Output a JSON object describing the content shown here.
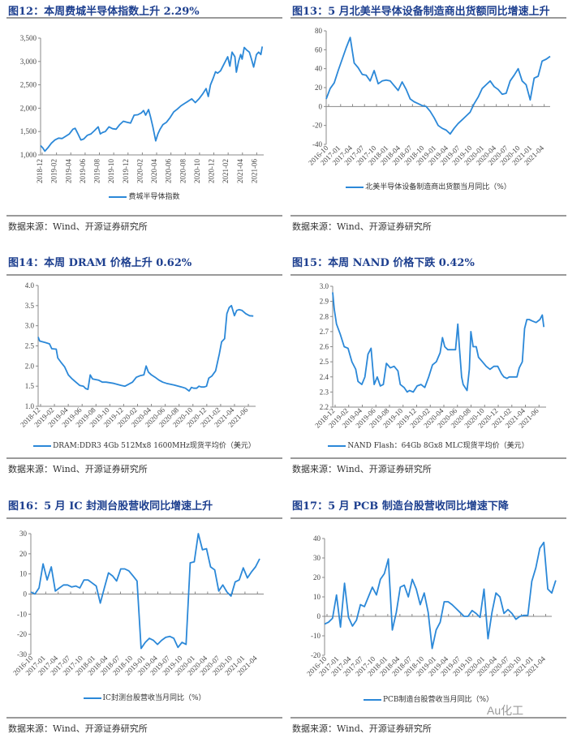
{
  "source_text": "数据来源：Wind、开源证券研究所",
  "watermark": "Au化工",
  "chart_data": [
    {
      "type": "line",
      "title": "图12：本周费城半导体指数上升 2.29%",
      "legend": "费城半导体指数",
      "x_unit": "months since 2018-12",
      "yticks": [
        "1,000",
        "1,500",
        "2,000",
        "2,500",
        "3,000",
        "3,500"
      ],
      "ylim": [
        1000,
        3500
      ],
      "xlim": [
        0,
        31
      ],
      "xticks": [
        "2018-12",
        "2019-02",
        "2019-04",
        "2019-06",
        "2019-08",
        "2019-10",
        "2019-12",
        "2020-02",
        "2020-04",
        "2020-06",
        "2020-08",
        "2020-10",
        "2020-12",
        "2021-02",
        "2021-04",
        "2021-06"
      ],
      "x": [
        0,
        0.3,
        0.6,
        1,
        1.5,
        2,
        2.5,
        3,
        3.5,
        4,
        4.5,
        4.8,
        5.2,
        5.6,
        6,
        6.5,
        7,
        7.5,
        8,
        8.3,
        8.6,
        9,
        9.5,
        10,
        10.5,
        11,
        11.5,
        12,
        12.5,
        13,
        13.5,
        14,
        14.3,
        14.6,
        15,
        15.3,
        15.6,
        16,
        16.3,
        16.6,
        17,
        17.5,
        18,
        18.5,
        19,
        19.5,
        20,
        20.5,
        21,
        21.5,
        22,
        22.5,
        23,
        23.3,
        23.6,
        24,
        24.3,
        24.6,
        25,
        25.5,
        26,
        26.3,
        26.6,
        27,
        27.2,
        27.5,
        27.8,
        28,
        28.3,
        28.6,
        29,
        29.3,
        29.6,
        30,
        30.3,
        30.6,
        30.8
      ],
      "values": [
        1200,
        1150,
        1080,
        1150,
        1250,
        1320,
        1360,
        1350,
        1400,
        1450,
        1550,
        1570,
        1450,
        1320,
        1340,
        1420,
        1450,
        1520,
        1600,
        1450,
        1480,
        1500,
        1600,
        1560,
        1550,
        1650,
        1720,
        1700,
        1680,
        1850,
        1860,
        1900,
        1950,
        1850,
        1970,
        1800,
        1600,
        1300,
        1450,
        1550,
        1650,
        1700,
        1800,
        1920,
        1980,
        2050,
        2100,
        2150,
        2200,
        2120,
        2200,
        2300,
        2420,
        2250,
        2500,
        2650,
        2780,
        2750,
        2800,
        2950,
        3100,
        2900,
        3200,
        3100,
        2770,
        3000,
        3150,
        3050,
        3300,
        3250,
        3200,
        3050,
        2880,
        3150,
        3200,
        3150,
        3320
      ]
    },
    {
      "type": "line",
      "title": "图13：5 月北美半导体设备制造商出货额同比增速上升",
      "legend": "北美半导体设备制造商出货额当月同比（%）",
      "x_unit": "months since 2016-10",
      "yticks": [
        "-40",
        "-20",
        "0",
        "20",
        "40",
        "60",
        "80"
      ],
      "ylim": [
        -40,
        80
      ],
      "xlim": [
        0,
        56
      ],
      "xticks": [
        "2016-10",
        "2017-01",
        "2017-04",
        "2017-07",
        "2017-10",
        "2018-01",
        "2018-04",
        "2018-07",
        "2018-10",
        "2019-01",
        "2019-04",
        "2019-07",
        "2019-10",
        "2020-01",
        "2020-04",
        "2020-07",
        "2020-10",
        "2021-01",
        "2021-04"
      ],
      "values": [
        8,
        19,
        25,
        38,
        50,
        62,
        73,
        46,
        41,
        34,
        33,
        27,
        38,
        24,
        27,
        28,
        27,
        22,
        17,
        26,
        18,
        8,
        5,
        3,
        1,
        0,
        -5,
        -12,
        -20,
        -23,
        -25,
        -29,
        -23,
        -18,
        -14,
        -10,
        -6,
        3,
        10,
        19,
        23,
        27,
        21,
        18,
        13,
        14,
        27,
        33,
        40,
        27,
        23,
        7,
        30,
        32,
        48,
        50,
        53
      ]
    },
    {
      "type": "line",
      "title": "图14：本周 DRAM 价格上升 0.62%",
      "legend": "DRAM:DDR3 4Gb 512Mx8 1600MHz现货平均价（美元）",
      "x_unit": "months since 2018-12",
      "yticks": [
        "1.0",
        "1.5",
        "2.0",
        "2.5",
        "3.0",
        "3.5",
        "4.0"
      ],
      "ylim": [
        1.0,
        4.0
      ],
      "xlim": [
        0,
        28.8
      ],
      "xticks": [
        "2018-12",
        "2019-02",
        "2019-04",
        "2019-06",
        "2019-08",
        "2019-10",
        "2019-12",
        "2020-02",
        "2020-04",
        "2020-06",
        "2020-08",
        "2020-10",
        "2020-12",
        "2021-02",
        "2021-04",
        "2021-06"
      ],
      "x": [
        0,
        0.2,
        1,
        1.5,
        1.8,
        2.4,
        2.6,
        3,
        3.5,
        4,
        4.5,
        5,
        5.5,
        6,
        6.3,
        6.6,
        6.9,
        7.2,
        8,
        8.5,
        9,
        10,
        11,
        11.5,
        12,
        12.5,
        13,
        13.5,
        14,
        14.3,
        14.6,
        15,
        15.5,
        16,
        16.5,
        17,
        18,
        19,
        19.5,
        20,
        20.3,
        20.6,
        21,
        21.3,
        21.6,
        22,
        22.3,
        22.6,
        23,
        23.5,
        24,
        24.3,
        24.7,
        25,
        25.3,
        25.6,
        26,
        26.3,
        26.6,
        27,
        27.5,
        28,
        28.5
      ],
      "values": [
        2.72,
        2.62,
        2.58,
        2.55,
        2.43,
        2.42,
        2.2,
        2.1,
        1.98,
        1.78,
        1.68,
        1.6,
        1.52,
        1.5,
        1.44,
        1.42,
        1.78,
        1.68,
        1.65,
        1.6,
        1.6,
        1.57,
        1.52,
        1.5,
        1.55,
        1.6,
        1.72,
        1.76,
        1.78,
        2.0,
        1.85,
        1.78,
        1.72,
        1.65,
        1.6,
        1.57,
        1.53,
        1.48,
        1.45,
        1.38,
        1.47,
        1.45,
        1.45,
        1.5,
        1.48,
        1.48,
        1.5,
        1.7,
        1.75,
        1.88,
        2.3,
        2.6,
        2.68,
        3.3,
        3.45,
        3.5,
        3.25,
        3.38,
        3.4,
        3.38,
        3.3,
        3.25,
        3.24
      ]
    },
    {
      "type": "line",
      "title": "图15：本周 NAND 价格下跌 0.42%",
      "legend": "NAND Flash：64Gb 8Gx8 MLC现货平均价（美元）",
      "x_unit": "months since 2018-12",
      "yticks": [
        "2.2",
        "2.3",
        "2.4",
        "2.5",
        "2.6",
        "2.7",
        "2.8",
        "2.9",
        "3.0"
      ],
      "ylim": [
        2.2,
        3.0
      ],
      "xlim": [
        0,
        27.8
      ],
      "xticks": [
        "2018-12",
        "2019-02",
        "2019-04",
        "2019-06",
        "2019-08",
        "2019-10",
        "2019-12",
        "2020-02",
        "2020-04",
        "2020-06",
        "2020-08",
        "2020-10",
        "2020-12",
        "2021-02",
        "2021-04",
        "2021-06"
      ],
      "x": [
        0,
        0.2,
        0.5,
        1,
        1.5,
        2,
        2.5,
        3,
        3.3,
        3.8,
        4.2,
        4.6,
        5,
        5.4,
        5.8,
        6.2,
        6.6,
        7,
        7.5,
        8,
        8.5,
        8.8,
        9.3,
        9.7,
        10,
        10.5,
        11,
        11.5,
        12,
        12.5,
        13,
        13.5,
        14,
        14.3,
        14.6,
        15,
        15.5,
        16,
        16.3,
        16.5,
        16.8,
        17,
        17.5,
        17.8,
        18,
        18.3,
        18.7,
        19,
        19.5,
        20,
        20.5,
        21,
        21.5,
        22,
        22.3,
        22.7,
        23,
        23.5,
        24,
        24.3,
        24.7,
        25,
        25.3,
        25.6,
        26,
        26.5,
        27,
        27.3,
        27.5
      ],
      "values": [
        2.96,
        2.85,
        2.75,
        2.68,
        2.6,
        2.59,
        2.5,
        2.45,
        2.37,
        2.35,
        2.4,
        2.55,
        2.59,
        2.35,
        2.4,
        2.34,
        2.35,
        2.49,
        2.46,
        2.47,
        2.44,
        2.35,
        2.33,
        2.3,
        2.31,
        2.3,
        2.34,
        2.35,
        2.33,
        2.4,
        2.48,
        2.5,
        2.56,
        2.66,
        2.6,
        2.58,
        2.58,
        2.58,
        2.75,
        2.6,
        2.4,
        2.35,
        2.31,
        2.45,
        2.7,
        2.6,
        2.6,
        2.53,
        2.5,
        2.47,
        2.45,
        2.47,
        2.47,
        2.42,
        2.4,
        2.39,
        2.4,
        2.4,
        2.4,
        2.46,
        2.5,
        2.72,
        2.78,
        2.78,
        2.77,
        2.76,
        2.78,
        2.81,
        2.73
      ]
    },
    {
      "type": "line",
      "title": "图16：5 月 IC 封测台股营收同比增速上升",
      "legend": "IC封测台股营收当月同比（%）",
      "x_unit": "months since 2016-10",
      "yticks": [
        "-30",
        "-20",
        "-10",
        "0",
        "10",
        "20",
        "30"
      ],
      "ylim": [
        -30,
        30
      ],
      "xlim": [
        0,
        57
      ],
      "xticks": [
        "2016-10",
        "2017-01",
        "2017-04",
        "2017-07",
        "2017-10",
        "2018-01",
        "2018-04",
        "2018-07",
        "2018-10",
        "2019-01",
        "2019-04",
        "2019-07",
        "2019-10",
        "2020-01",
        "2020-04",
        "2020-07",
        "2020-10",
        "2021-01",
        "2021-04"
      ],
      "values": [
        1,
        0,
        3,
        15,
        7,
        13.5,
        1.5,
        3,
        4.5,
        4.5,
        3.5,
        4,
        3,
        7,
        7,
        5.5,
        4,
        -4.5,
        3,
        10.5,
        9,
        6.5,
        12.5,
        12.5,
        11.5,
        9,
        6.5,
        -27,
        -24,
        -22,
        -23,
        -25,
        -23,
        -21.5,
        -21,
        -22,
        -26.5,
        -24,
        -25,
        15.5,
        16,
        30,
        22,
        22.5,
        13.5,
        12,
        1.5,
        4.5,
        1,
        -1,
        6,
        7,
        13,
        8,
        11,
        13.5,
        17.5
      ]
    },
    {
      "type": "line",
      "title": "图17：5 月 PCB 制造台股营收同比增速下降",
      "legend": "PCB制造台股营收当月同比（%）",
      "x_unit": "months since 2016-10",
      "yticks": [
        "-20",
        "-10",
        "0",
        "10",
        "20",
        "30",
        "40"
      ],
      "ylim": [
        -20,
        40
      ],
      "xlim": [
        0,
        57
      ],
      "xticks": [
        "2016-10",
        "2017-01",
        "2017-04",
        "2017-07",
        "2017-10",
        "2018-01",
        "2018-04",
        "2018-07",
        "2018-10",
        "2019-01",
        "2019-04",
        "2019-07",
        "2019-10",
        "2020-01",
        "2020-04",
        "2020-07",
        "2020-10",
        "2021-01",
        "2021-04"
      ],
      "values": [
        -4,
        -3,
        -1,
        11,
        -5.5,
        17,
        -0.5,
        -5,
        -2,
        6,
        5,
        10,
        15,
        11,
        19,
        22,
        29.5,
        -7,
        2,
        15,
        16,
        10,
        19,
        14,
        6,
        12,
        2,
        -16.5,
        -7,
        -3,
        7.5,
        7.5,
        6,
        4,
        2,
        0,
        0,
        3,
        1.5,
        -0.5,
        14,
        -11.5,
        2,
        12,
        10,
        1.5,
        3.5,
        1.5,
        -1.5,
        0,
        0.5,
        0.5,
        18,
        25,
        35,
        38,
        14,
        12,
        18.5
      ]
    }
  ]
}
